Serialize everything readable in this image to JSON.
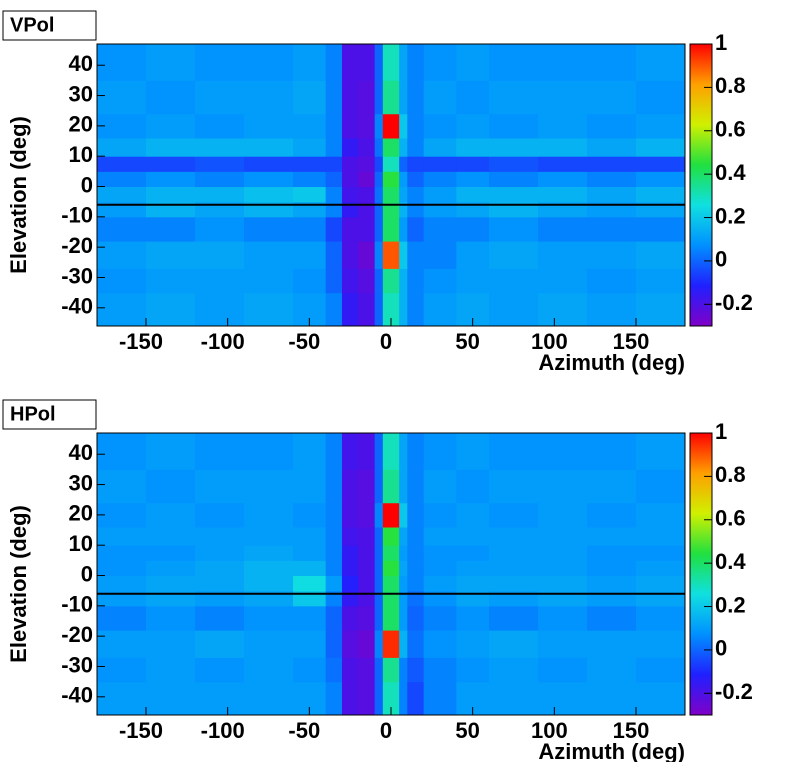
{
  "chart_data": [
    {
      "type": "heatmap",
      "title": "VPol",
      "xlabel": "Azimuth (deg)",
      "ylabel": "Elevation (deg)",
      "xlim": [
        -180,
        180
      ],
      "xticks": [
        -150,
        -100,
        -50,
        0,
        50,
        100,
        150
      ],
      "ylim": [
        -46,
        47
      ],
      "yticks": [
        -40,
        -30,
        -20,
        -10,
        0,
        10,
        20,
        30,
        40
      ],
      "zlim": [
        -0.3,
        1
      ],
      "zticks": [
        -0.2,
        0,
        0.2,
        0.4,
        0.6,
        0.8,
        1
      ],
      "colormap": [
        "#8000c8",
        "#2020ff",
        "#0090ff",
        "#10e0e0",
        "#20e040",
        "#d0f000",
        "#ffa000",
        "#ff0000"
      ],
      "hline": -6,
      "xbins": [
        -180,
        -150,
        -120,
        -90,
        -60,
        -40,
        -30,
        -20,
        -10,
        -5,
        5,
        10,
        20,
        40,
        60,
        90,
        120,
        150,
        180
      ],
      "ybins": [
        -46,
        -35,
        -27,
        -18,
        -10,
        -5,
        0,
        5,
        10,
        16,
        24,
        35,
        47
      ],
      "z": [
        [
          0.1,
          0.12,
          0.1,
          0.12,
          0.1,
          0.05,
          -0.15,
          -0.2,
          0,
          0.3,
          0.15,
          0.05,
          0.1,
          0.12,
          0.1,
          0.12,
          0.1,
          0.12
        ],
        [
          0.08,
          0.1,
          0.1,
          0.1,
          0.08,
          0.0,
          -0.18,
          -0.22,
          0,
          0.35,
          0.15,
          0.05,
          0.08,
          0.1,
          0.1,
          0.1,
          0.08,
          0.1
        ],
        [
          0.1,
          0.12,
          0.12,
          0.1,
          0.1,
          0.0,
          -0.2,
          -0.25,
          0.05,
          0.9,
          0.2,
          0.05,
          0.05,
          0.1,
          0.12,
          0.1,
          0.1,
          0.12
        ],
        [
          0.05,
          0.05,
          0.08,
          0.05,
          0.05,
          -0.05,
          -0.2,
          -0.2,
          0,
          0.4,
          0.1,
          0,
          0.05,
          0.05,
          0.08,
          0.05,
          0.05,
          0.05
        ],
        [
          0.1,
          0.15,
          0.12,
          0.15,
          0.12,
          0.05,
          -0.15,
          -0.2,
          0,
          0.4,
          0.15,
          0.05,
          0.1,
          0.12,
          0.15,
          0.12,
          0.1,
          0.12
        ],
        [
          0.12,
          0.15,
          0.15,
          0.18,
          0.2,
          0.05,
          -0.18,
          -0.2,
          0.02,
          0.4,
          0.12,
          0.05,
          0.1,
          0.15,
          0.15,
          0.15,
          0.12,
          0.15
        ],
        [
          0.05,
          0.08,
          0.05,
          0.08,
          0.05,
          0,
          -0.2,
          -0.25,
          0,
          0.45,
          0.1,
          0,
          0.05,
          0.08,
          0.05,
          0.08,
          0.05,
          0.08
        ],
        [
          -0.05,
          -0.05,
          -0.03,
          -0.05,
          -0.05,
          -0.05,
          -0.2,
          -0.22,
          -0.05,
          0.3,
          0.0,
          -0.05,
          -0.05,
          -0.05,
          -0.03,
          -0.05,
          -0.05,
          -0.05
        ],
        [
          0.12,
          0.15,
          0.15,
          0.15,
          0.12,
          0.05,
          -0.15,
          -0.2,
          0.02,
          0.4,
          0.15,
          0.05,
          0.12,
          0.15,
          0.15,
          0.15,
          0.12,
          0.15
        ],
        [
          0.08,
          0.1,
          0.08,
          0.1,
          0.1,
          0.05,
          -0.2,
          -0.22,
          0.05,
          1,
          0.2,
          0.05,
          0.08,
          0.1,
          0.08,
          0.1,
          0.08,
          0.1
        ],
        [
          0.1,
          0.08,
          0.1,
          0.1,
          0.12,
          0.05,
          -0.2,
          -0.22,
          0,
          0.35,
          0.12,
          0.05,
          0.1,
          0.08,
          0.1,
          0.1,
          0.1,
          0.08
        ],
        [
          0.08,
          0.1,
          0.08,
          0.08,
          0.1,
          0.05,
          -0.2,
          -0.2,
          0,
          0.3,
          0.12,
          0.05,
          0.08,
          0.1,
          0.08,
          0.08,
          0.08,
          0.1
        ]
      ]
    },
    {
      "type": "heatmap",
      "title": "HPol",
      "xlabel": "Azimuth (deg)",
      "ylabel": "Elevation (deg)",
      "xlim": [
        -180,
        180
      ],
      "xticks": [
        -150,
        -100,
        -50,
        0,
        50,
        100,
        150
      ],
      "ylim": [
        -46,
        47
      ],
      "yticks": [
        -40,
        -30,
        -20,
        -10,
        0,
        10,
        20,
        30,
        40
      ],
      "zlim": [
        -0.3,
        1
      ],
      "zticks": [
        -0.2,
        0,
        0.2,
        0.4,
        0.6,
        0.8,
        1
      ],
      "colormap": [
        "#8000c8",
        "#2020ff",
        "#0090ff",
        "#10e0e0",
        "#20e040",
        "#d0f000",
        "#ffa000",
        "#ff0000"
      ],
      "hline": -6,
      "xbins": [
        -180,
        -150,
        -120,
        -90,
        -60,
        -40,
        -30,
        -20,
        -10,
        -5,
        5,
        10,
        20,
        40,
        60,
        90,
        120,
        150,
        180
      ],
      "ybins": [
        -46,
        -35,
        -27,
        -18,
        -10,
        -5,
        0,
        5,
        10,
        16,
        24,
        35,
        47
      ],
      "z": [
        [
          0.1,
          0.1,
          0.1,
          0.1,
          0.1,
          0.05,
          -0.2,
          -0.22,
          0,
          0.3,
          0.05,
          -0.05,
          0.05,
          0.1,
          0.1,
          0.1,
          0.1,
          0.1
        ],
        [
          0.08,
          0.1,
          0.08,
          0.1,
          0.08,
          0.02,
          -0.2,
          -0.22,
          0,
          0.35,
          0.05,
          -0.02,
          0.05,
          0.08,
          0.1,
          0.08,
          0.1,
          0.08
        ],
        [
          0.1,
          0.1,
          0.12,
          0.1,
          0.1,
          0,
          -0.22,
          -0.25,
          0.05,
          0.95,
          0.15,
          0.02,
          0.08,
          0.1,
          0.12,
          0.1,
          0.1,
          0.1
        ],
        [
          0.05,
          0.08,
          0.05,
          0.08,
          0.08,
          0.0,
          -0.2,
          -0.22,
          0,
          0.4,
          0.1,
          0,
          0.05,
          0.08,
          0.05,
          0.08,
          0.05,
          0.08
        ],
        [
          0.1,
          0.12,
          0.1,
          0.12,
          0.2,
          0.05,
          -0.15,
          -0.2,
          0,
          0.4,
          0.1,
          0.02,
          0.08,
          0.12,
          0.1,
          0.12,
          0.1,
          0.12
        ],
        [
          0.1,
          0.12,
          0.12,
          0.15,
          0.25,
          0.1,
          -0.12,
          -0.2,
          0,
          0.4,
          0.1,
          0.05,
          0.1,
          0.12,
          0.12,
          0.12,
          0.1,
          0.12
        ],
        [
          0.08,
          0.1,
          0.12,
          0.15,
          0.15,
          0.05,
          -0.15,
          -0.2,
          0,
          0.45,
          0.12,
          0.05,
          0.08,
          0.1,
          0.1,
          0.1,
          0.08,
          0.1
        ],
        [
          0.08,
          0.08,
          0.1,
          0.12,
          0.1,
          0.05,
          -0.15,
          -0.2,
          0,
          0.4,
          0.1,
          0.05,
          0.08,
          0.08,
          0.1,
          0.1,
          0.08,
          0.08
        ],
        [
          0.1,
          0.1,
          0.1,
          0.1,
          0.1,
          0.05,
          -0.18,
          -0.2,
          0,
          0.45,
          0.12,
          0.05,
          0.1,
          0.1,
          0.1,
          0.1,
          0.1,
          0.1
        ],
        [
          0.08,
          0.1,
          0.08,
          0.1,
          0.08,
          0.05,
          -0.2,
          -0.22,
          0.05,
          1,
          0.2,
          0.05,
          0.08,
          0.1,
          0.08,
          0.1,
          0.08,
          0.1
        ],
        [
          0.1,
          0.08,
          0.1,
          0.1,
          0.1,
          0.05,
          -0.2,
          -0.22,
          0,
          0.35,
          0.12,
          0.05,
          0.1,
          0.08,
          0.1,
          0.1,
          0.1,
          0.08
        ],
        [
          0.08,
          0.1,
          0.08,
          0.08,
          0.1,
          0.05,
          -0.18,
          -0.2,
          0,
          0.3,
          0.12,
          0.05,
          0.08,
          0.1,
          0.08,
          0.08,
          0.08,
          0.1
        ]
      ]
    }
  ]
}
